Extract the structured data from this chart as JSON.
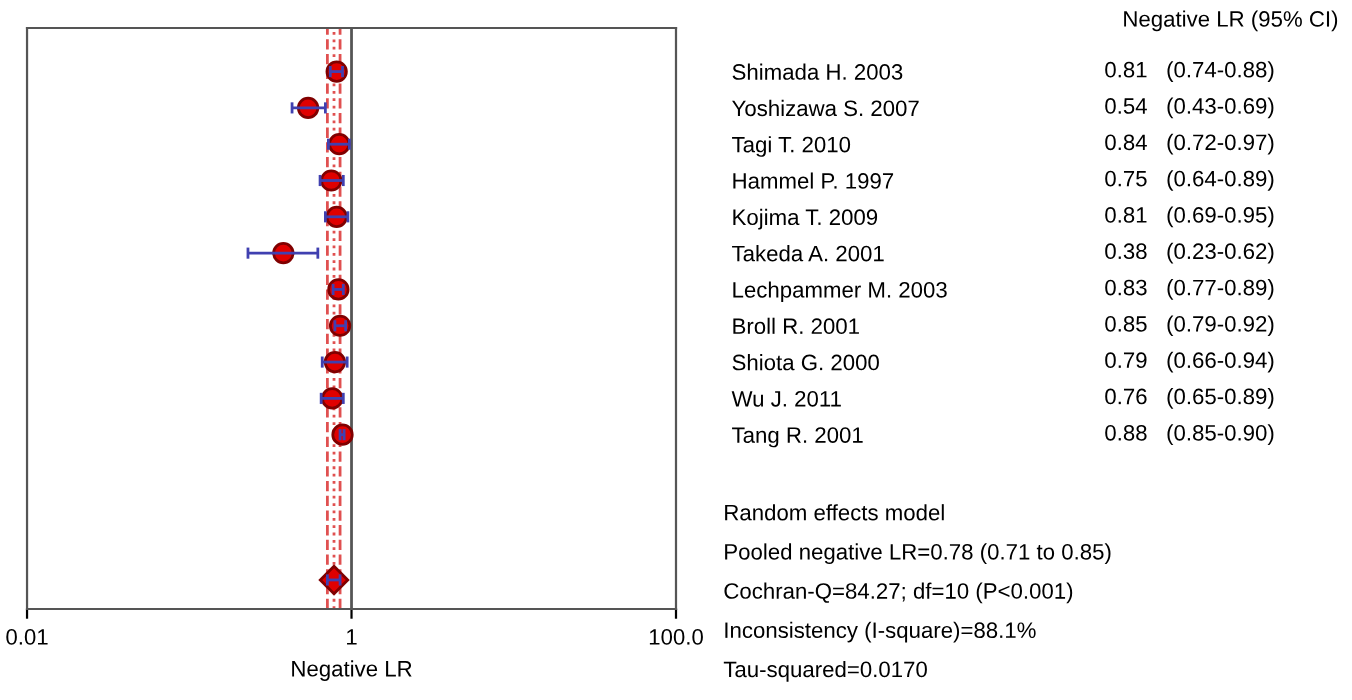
{
  "chart_data": {
    "type": "scatter",
    "orientation": "horizontal",
    "xlabel": "Negative LR",
    "categories": [
      "Shimada H. 2003",
      "Yoshizawa S. 2007",
      "Tagi T. 2010",
      "Hammel P. 1997",
      "Kojima T. 2009",
      "Takeda A. 2001",
      "Lechpammer M. 2003",
      "Broll R. 2001",
      "Shiota G. 2000",
      "Wu J. 2011",
      "Tang R. 2001",
      null,
      null,
      null,
      null
    ],
    "series": [
      {
        "color": "#e00000",
        "marker": "circle",
        "values": [
          0.81,
          0.54,
          0.84,
          0.75,
          0.81,
          0.38,
          0.83,
          0.85,
          0.79,
          0.76,
          0.88,
          null,
          null,
          null,
          null
        ],
        "errors": [
          [
            0.74,
            0.88
          ],
          [
            0.43,
            0.69
          ],
          [
            0.72,
            0.97
          ],
          [
            0.64,
            0.89
          ],
          [
            0.69,
            0.95
          ],
          [
            0.23,
            0.62
          ],
          [
            0.77,
            0.89
          ],
          [
            0.79,
            0.92
          ],
          [
            0.66,
            0.94
          ],
          [
            0.65,
            0.89
          ],
          [
            0.85,
            0.9
          ],
          null,
          null,
          null,
          null
        ],
        "value_labels": [
          "0.81   (0.74-0.88)",
          "0.54   (0.43-0.69)",
          "0.84   (0.72-0.97)",
          "0.75   (0.64-0.89)",
          "0.81   (0.69-0.95)",
          "0.38   (0.23-0.62)",
          "0.83   (0.77-0.89)",
          "0.85   (0.79-0.92)",
          "0.79   (0.66-0.94)",
          "0.76   (0.65-0.89)",
          "0.88   (0.85-0.90)",
          null,
          null,
          null,
          null
        ]
      },
      {
        "color": "#e00000",
        "marker": "diamond",
        "values": [
          null,
          null,
          null,
          null,
          null,
          null,
          null,
          null,
          null,
          null,
          null,
          null,
          null,
          null,
          0.78
        ],
        "errors": [
          null,
          null,
          null,
          null,
          null,
          null,
          null,
          null,
          null,
          null,
          null,
          null,
          null,
          null,
          [
            0.71,
            0.85
          ]
        ]
      }
    ],
    "log": "x",
    "xlim": [
      0.01,
      100
    ],
    "xticks": [
      0.01,
      1,
      {
        "value": 100,
        "label": "100.0"
      }
    ],
    "ref_lines": [
      {
        "axis": "x",
        "value": 1,
        "color": "#555555",
        "line_style": "solid"
      },
      {
        "axis": "x",
        "value": 0.71,
        "color": "#e05050",
        "line_style": "dashed"
      },
      {
        "axis": "x",
        "value": 0.78,
        "color": "#e05050",
        "line_style": "dotted"
      },
      {
        "axis": "x",
        "value": 0.85,
        "color": "#e05050",
        "line_style": "dashed"
      }
    ],
    "annotations": [
      "Negative LR (95% CI)",
      "Random effects model",
      "Pooled negative LR=0.78 (0.71 to 0.85)",
      "Cochran-Q=84.27; df=10 (P<0.001)",
      "Inconsistency (I-square)=88.1%",
      "Tau-squared=0.0170"
    ],
    "grid": false
  }
}
